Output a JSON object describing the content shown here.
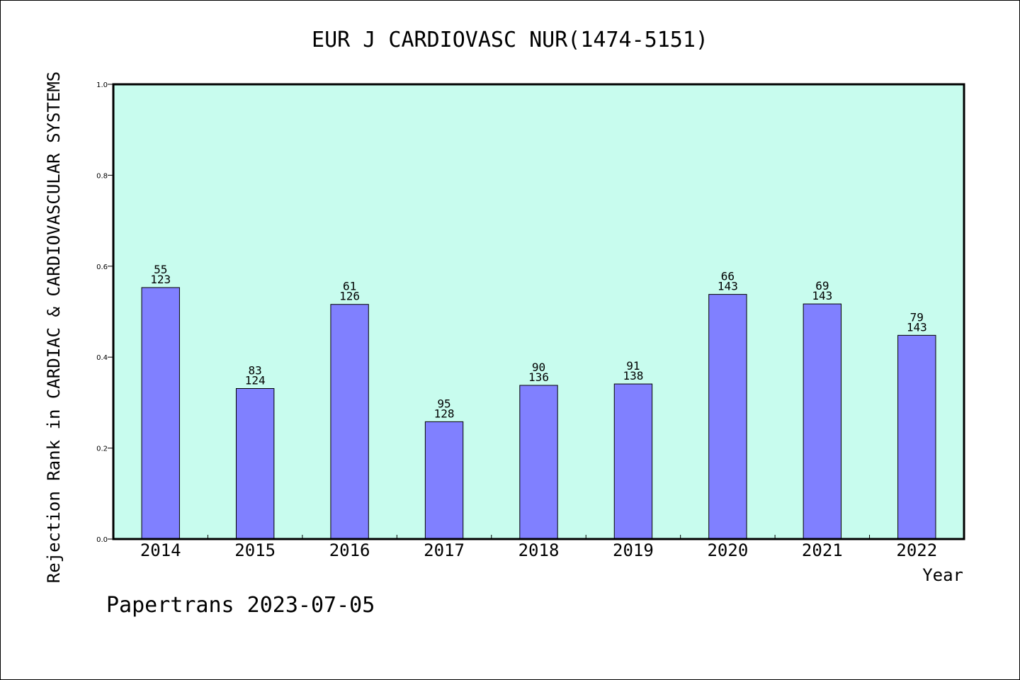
{
  "chart_data": {
    "type": "bar",
    "title": "EUR J CARDIOVASC NUR(1474-5151)",
    "xlabel": "Year",
    "ylabel": "Rejection Rank in CARDIAC & CARDIOVASCULAR SYSTEMS",
    "ylim": [
      0,
      1.0
    ],
    "yticks": [
      "0.0",
      "0.2",
      "0.4",
      "0.6",
      "0.8",
      "1.0"
    ],
    "categories": [
      "2014",
      "2015",
      "2016",
      "2017",
      "2018",
      "2019",
      "2020",
      "2021",
      "2022"
    ],
    "values": [
      0.553,
      0.331,
      0.516,
      0.258,
      0.338,
      0.341,
      0.538,
      0.517,
      0.448
    ],
    "label_top": [
      "55",
      "83",
      "61",
      "95",
      "90",
      "91",
      "66",
      "69",
      "79"
    ],
    "label_bottom": [
      "123",
      "124",
      "126",
      "128",
      "136",
      "138",
      "143",
      "143",
      "143"
    ],
    "grid": false,
    "legend": "none",
    "colors": {
      "plot_background": "#c8fcee",
      "bar_fill": "#8080ff",
      "bar_stroke": "#000000"
    }
  },
  "footer": "Papertrans 2023-07-05"
}
